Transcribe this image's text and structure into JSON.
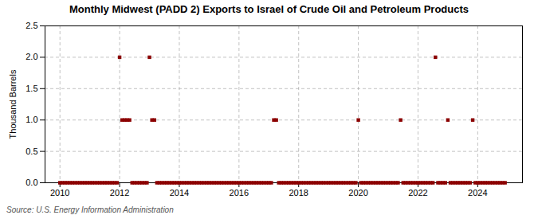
{
  "chart_data": {
    "type": "scatter",
    "title": "Monthly Midwest (PADD 2) Exports to Israel of Crude Oil and Petroleum Products",
    "ylabel": "Thousand Barrels",
    "annotations": [
      "Source: U.S. Energy Information Administration"
    ],
    "color": "#8b0000",
    "marker": "square",
    "grid": true,
    "xlim": [
      2009.5,
      2025.5
    ],
    "xticks": [
      2010,
      2012,
      2014,
      2016,
      2018,
      2020,
      2022,
      2024
    ],
    "ylim": [
      0,
      2.5
    ],
    "yticks": [
      {
        "value": 0,
        "label": "0.0"
      },
      0.5,
      {
        "value": 1,
        "label": "1.0"
      },
      1.5,
      {
        "value": 2,
        "label": "2.0"
      },
      2.5
    ],
    "x": [
      2010.0,
      2010.083,
      2010.167,
      2010.25,
      2010.333,
      2010.417,
      2010.5,
      2010.583,
      2010.667,
      2010.75,
      2010.833,
      2010.917,
      2011.0,
      2011.083,
      2011.167,
      2011.25,
      2011.333,
      2011.417,
      2011.5,
      2011.583,
      2011.667,
      2011.75,
      2011.833,
      2011.917,
      2012.0,
      2012.083,
      2012.167,
      2012.25,
      2012.333,
      2012.417,
      2012.5,
      2012.583,
      2012.667,
      2012.75,
      2012.833,
      2012.917,
      2013.0,
      2013.083,
      2013.167,
      2013.25,
      2013.333,
      2013.417,
      2013.5,
      2013.583,
      2013.667,
      2013.75,
      2013.833,
      2013.917,
      2014.0,
      2014.083,
      2014.167,
      2014.25,
      2014.333,
      2014.417,
      2014.5,
      2014.583,
      2014.667,
      2014.75,
      2014.833,
      2014.917,
      2015.0,
      2015.083,
      2015.167,
      2015.25,
      2015.333,
      2015.417,
      2015.5,
      2015.583,
      2015.667,
      2015.75,
      2015.833,
      2015.917,
      2016.0,
      2016.083,
      2016.167,
      2016.25,
      2016.333,
      2016.417,
      2016.5,
      2016.583,
      2016.667,
      2016.75,
      2016.833,
      2016.917,
      2017.0,
      2017.083,
      2017.167,
      2017.25,
      2017.333,
      2017.417,
      2017.5,
      2017.583,
      2017.667,
      2017.75,
      2017.833,
      2017.917,
      2018.0,
      2018.083,
      2018.167,
      2018.25,
      2018.333,
      2018.417,
      2018.5,
      2018.583,
      2018.667,
      2018.75,
      2018.833,
      2018.917,
      2019.0,
      2019.083,
      2019.167,
      2019.25,
      2019.333,
      2019.417,
      2019.5,
      2019.583,
      2019.667,
      2019.75,
      2019.833,
      2019.917,
      2020.0,
      2020.083,
      2020.167,
      2020.25,
      2020.333,
      2020.417,
      2020.5,
      2020.583,
      2020.667,
      2020.75,
      2020.833,
      2020.917,
      2021.0,
      2021.083,
      2021.167,
      2021.25,
      2021.333,
      2021.417,
      2021.5,
      2021.583,
      2021.667,
      2021.75,
      2021.833,
      2021.917,
      2022.0,
      2022.083,
      2022.167,
      2022.25,
      2022.333,
      2022.417,
      2022.5,
      2022.583,
      2022.667,
      2022.75,
      2022.833,
      2022.917,
      2023.0,
      2023.083,
      2023.167,
      2023.25,
      2023.333,
      2023.417,
      2023.5,
      2023.583,
      2023.667,
      2023.75,
      2023.833,
      2023.917,
      2024.0,
      2024.083,
      2024.167,
      2024.25,
      2024.333,
      2024.417,
      2024.5,
      2024.583,
      2024.667,
      2024.75,
      2024.833,
      2024.917
    ],
    "values": [
      0,
      0,
      0,
      0,
      0,
      0,
      0,
      0,
      0,
      0,
      0,
      0,
      0,
      0,
      0,
      0,
      0,
      0,
      0,
      0,
      0,
      0,
      0,
      0,
      2,
      1,
      1,
      1,
      1,
      0,
      0,
      0,
      0,
      0,
      0,
      0,
      2,
      1,
      1,
      0,
      0,
      0,
      0,
      0,
      0,
      0,
      0,
      0,
      0,
      0,
      0,
      0,
      0,
      0,
      0,
      0,
      0,
      0,
      0,
      0,
      0,
      0,
      0,
      0,
      0,
      0,
      0,
      0,
      0,
      0,
      0,
      0,
      0,
      0,
      0,
      0,
      0,
      0,
      0,
      0,
      0,
      0,
      0,
      0,
      0,
      0,
      1,
      1,
      0,
      0,
      0,
      0,
      0,
      0,
      0,
      0,
      0,
      0,
      0,
      0,
      0,
      0,
      0,
      0,
      0,
      0,
      0,
      0,
      0,
      0,
      0,
      0,
      0,
      0,
      0,
      0,
      0,
      0,
      0,
      0,
      1,
      0,
      0,
      0,
      0,
      0,
      0,
      0,
      0,
      0,
      0,
      0,
      0,
      0,
      0,
      0,
      0,
      1,
      0,
      0,
      0,
      0,
      0,
      0,
      0,
      0,
      0,
      0,
      0,
      0,
      0,
      2,
      0,
      0,
      0,
      0,
      1,
      0,
      0,
      0,
      0,
      0,
      0,
      0,
      0,
      0,
      1,
      0,
      0,
      0,
      0,
      0,
      0,
      0,
      0,
      0,
      0,
      0,
      0,
      0
    ]
  }
}
